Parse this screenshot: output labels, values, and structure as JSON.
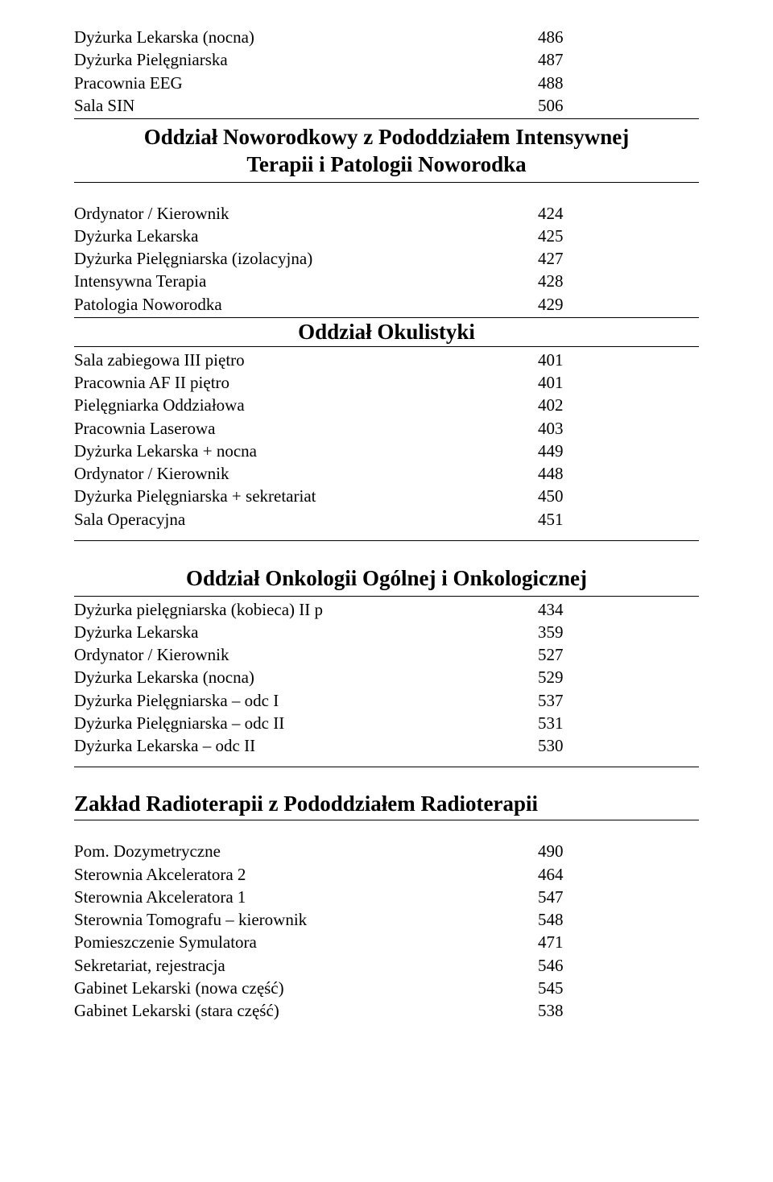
{
  "section1": {
    "rows": [
      {
        "label": "Dyżurka Lekarska (nocna)",
        "value": "486"
      },
      {
        "label": "Dyżurka Pielęgniarska",
        "value": "487"
      },
      {
        "label": "Pracownia EEG",
        "value": "488"
      },
      {
        "label": "Sala SIN",
        "value": "506"
      }
    ]
  },
  "heading1_line1": "Oddział Noworodkowy z Pododdziałem Intensywnej",
  "heading1_line2": "Terapii i Patologii Noworodka",
  "section2": {
    "rows": [
      {
        "label": "Ordynator / Kierownik",
        "value": "424"
      },
      {
        "label": "Dyżurka Lekarska",
        "value": "425"
      },
      {
        "label": "Dyżurka Pielęgniarska (izolacyjna)",
        "value": "427"
      },
      {
        "label": "Intensywna Terapia",
        "value": "428"
      },
      {
        "label": "Patologia Noworodka",
        "value": "429"
      }
    ]
  },
  "heading2": "Oddział Okulistyki",
  "section3": {
    "rows": [
      {
        "label": "Sala zabiegowa III piętro",
        "value": "401"
      },
      {
        "label": "Pracownia AF II piętro",
        "value": "401"
      },
      {
        "label": "Pielęgniarka Oddziałowa",
        "value": "402"
      },
      {
        "label": "Pracownia Laserowa",
        "value": "403"
      },
      {
        "label": "Dyżurka Lekarska + nocna",
        "value": "449"
      },
      {
        "label": "Ordynator / Kierownik",
        "value": "448"
      },
      {
        "label": "Dyżurka Pielęgniarska + sekretariat",
        "value": "450"
      },
      {
        "label": "Sala Operacyjna",
        "value": "451"
      }
    ]
  },
  "heading3": "Oddział Onkologii Ogólnej i Onkologicznej",
  "section4": {
    "rows": [
      {
        "label": "Dyżurka pielęgniarska (kobieca) II p",
        "value": "434"
      },
      {
        "label": "Dyżurka Lekarska",
        "value": "359"
      },
      {
        "label": "Ordynator / Kierownik",
        "value": "527"
      },
      {
        "label": "Dyżurka Lekarska (nocna)",
        "value": "529"
      },
      {
        "label": "Dyżurka Pielęgniarska – odc I",
        "value": "537"
      },
      {
        "label": "Dyżurka Pielęgniarska – odc II",
        "value": "531"
      },
      {
        "label": "Dyżurka Lekarska – odc II",
        "value": "530"
      }
    ]
  },
  "heading4": "Zakład Radioterapii z Pododdziałem Radioterapii",
  "section5": {
    "rows": [
      {
        "label": "Pom. Dozymetryczne",
        "value": "490"
      },
      {
        "label": "Sterownia Akceleratora 2",
        "value": "464"
      },
      {
        "label": "Sterownia Akceleratora 1",
        "value": "547"
      },
      {
        "label": "Sterownia Tomografu – kierownik",
        "value": "548"
      },
      {
        "label": "Pomieszczenie Symulatora",
        "value": "471"
      },
      {
        "label": "Sekretariat, rejestracja",
        "value": "546"
      },
      {
        "label": "Gabinet Lekarski (nowa część)",
        "value": "545"
      },
      {
        "label": "Gabinet Lekarski (stara część)",
        "value": "538"
      }
    ]
  }
}
